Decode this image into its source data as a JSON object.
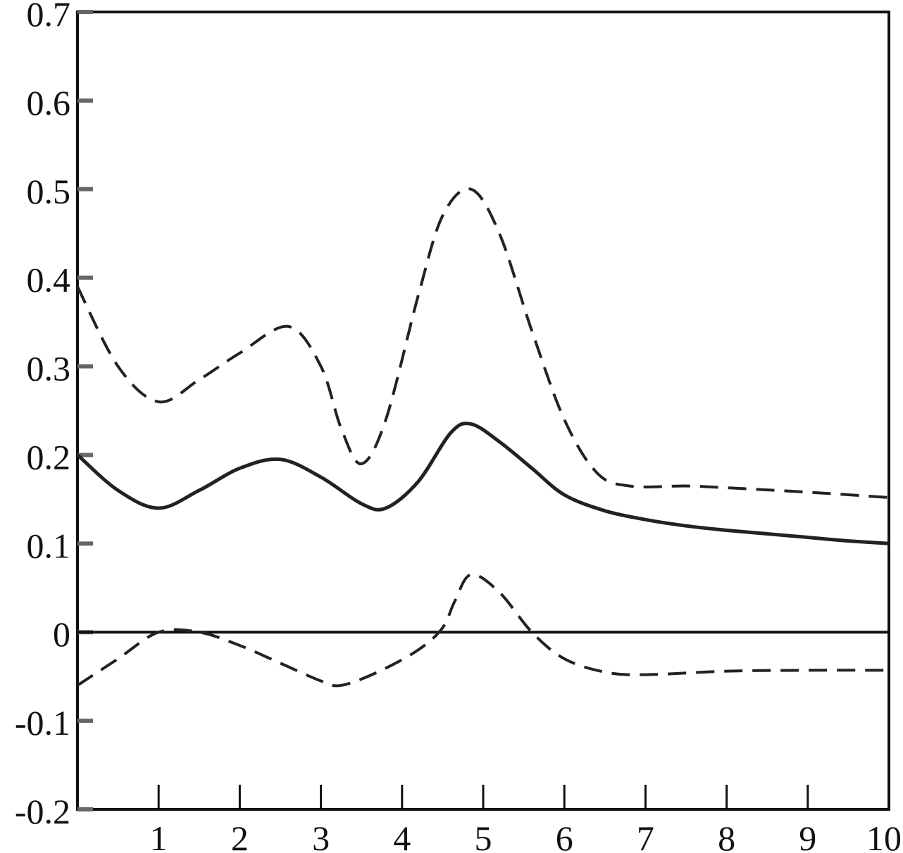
{
  "chart_data": {
    "type": "line",
    "title": "",
    "xlabel": "",
    "ylabel": "",
    "xlim": [
      0,
      10
    ],
    "ylim": [
      -0.2,
      0.7
    ],
    "x_ticks": [
      1,
      2,
      3,
      4,
      5,
      6,
      7,
      8,
      9,
      10
    ],
    "x_tick_labels": [
      "1",
      "2",
      "3",
      "4",
      "5",
      "6",
      "7",
      "8",
      "9",
      "10"
    ],
    "y_ticks": [
      -0.2,
      -0.1,
      0,
      0.1,
      0.2,
      0.3,
      0.4,
      0.5,
      0.6,
      0.7
    ],
    "y_tick_labels": [
      "-0.2",
      "-0.1",
      "0",
      "0.1",
      "0.2",
      "0.3",
      "0.4",
      "0.5",
      "0.6",
      "0.7"
    ],
    "zero_line": true,
    "grid": false,
    "legend": "none",
    "series": [
      {
        "style": "solid",
        "color": "#222222",
        "x": [
          0,
          0.5,
          1,
          1.5,
          2,
          2.5,
          3,
          3.5,
          3.8,
          4.2,
          4.6,
          4.85,
          5.2,
          5.6,
          6,
          6.5,
          7,
          7.5,
          8,
          8.5,
          9,
          9.5,
          10
        ],
        "y": [
          0.2,
          0.16,
          0.14,
          0.16,
          0.185,
          0.195,
          0.175,
          0.145,
          0.14,
          0.17,
          0.225,
          0.235,
          0.215,
          0.185,
          0.155,
          0.137,
          0.127,
          0.12,
          0.115,
          0.111,
          0.107,
          0.103,
          0.1
        ]
      },
      {
        "style": "dashed",
        "color": "#222222",
        "x": [
          0,
          0.5,
          1,
          1.5,
          2,
          2.6,
          3,
          3.25,
          3.5,
          3.8,
          4.2,
          4.5,
          4.85,
          5.2,
          5.6,
          6,
          6.4,
          6.8,
          7.5,
          8,
          9,
          10
        ],
        "y": [
          0.39,
          0.3,
          0.26,
          0.285,
          0.315,
          0.345,
          0.3,
          0.23,
          0.19,
          0.24,
          0.38,
          0.47,
          0.5,
          0.45,
          0.34,
          0.24,
          0.18,
          0.165,
          0.165,
          0.163,
          0.158,
          0.152
        ]
      },
      {
        "style": "dashed",
        "color": "#222222",
        "x": [
          0,
          0.5,
          1,
          1.5,
          2,
          2.5,
          3,
          3.25,
          3.7,
          4.2,
          4.5,
          4.65,
          4.85,
          5.2,
          5.6,
          6,
          6.5,
          7,
          8,
          9,
          10
        ],
        "y": [
          -0.06,
          -0.03,
          0,
          0,
          -0.015,
          -0.035,
          -0.055,
          -0.06,
          -0.045,
          -0.02,
          0.005,
          0.035,
          0.065,
          0.045,
          0.0,
          -0.03,
          -0.045,
          -0.048,
          -0.044,
          -0.043,
          -0.043
        ]
      }
    ]
  }
}
